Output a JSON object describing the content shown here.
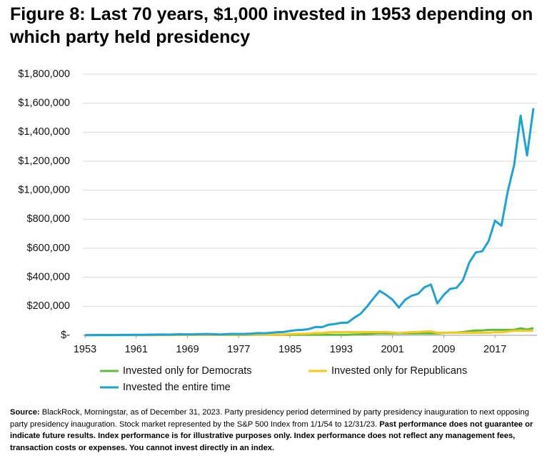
{
  "chart_data": {
    "type": "line",
    "title": "Figure 8: Last 70 years, $1,000 invested in 1953 depending on which party held presidency",
    "x": [
      1953,
      1954,
      1955,
      1956,
      1957,
      1958,
      1959,
      1960,
      1961,
      1962,
      1963,
      1964,
      1965,
      1966,
      1967,
      1968,
      1969,
      1970,
      1971,
      1972,
      1973,
      1974,
      1975,
      1976,
      1977,
      1978,
      1979,
      1980,
      1981,
      1982,
      1983,
      1984,
      1985,
      1986,
      1987,
      1988,
      1989,
      1990,
      1991,
      1992,
      1993,
      1994,
      1995,
      1996,
      1997,
      1998,
      1999,
      2000,
      2001,
      2002,
      2003,
      2004,
      2005,
      2006,
      2007,
      2008,
      2009,
      2010,
      2011,
      2012,
      2013,
      2014,
      2015,
      2016,
      2017,
      2018,
      2019,
      2020,
      2021,
      2022,
      2023
    ],
    "series": [
      {
        "name": "Invested only for Democrats",
        "color": "#5dbb3f",
        "values": [
          1000,
          1000,
          1000,
          1000,
          1000,
          1000,
          1000,
          1000,
          1270,
          1160,
          1420,
          1660,
          1860,
          1680,
          2080,
          2310,
          2310,
          2310,
          2310,
          2310,
          2310,
          2310,
          2310,
          2310,
          2140,
          2280,
          2700,
          3580,
          3580,
          3580,
          3580,
          3580,
          3580,
          3580,
          3580,
          3580,
          3580,
          3580,
          3580,
          3580,
          3940,
          3990,
          5490,
          6750,
          9010,
          11580,
          14020,
          12740,
          12740,
          12740,
          12740,
          12740,
          12740,
          12740,
          12740,
          12740,
          16110,
          18540,
          18930,
          21960,
          29070,
          33050,
          33510,
          37510,
          37510,
          37510,
          37510,
          37510,
          48280,
          39540,
          49930
        ]
      },
      {
        "name": "Invested only for Republicans",
        "color": "#f7c81e",
        "values": [
          1000,
          1530,
          2010,
          2140,
          1910,
          2730,
          3060,
          3070,
          3070,
          3070,
          3070,
          3070,
          3070,
          3070,
          3070,
          3070,
          2810,
          2920,
          3340,
          3970,
          3390,
          2490,
          3420,
          4240,
          4240,
          4240,
          4240,
          4240,
          4030,
          4900,
          6000,
          6380,
          8400,
          9970,
          10490,
          12230,
          16110,
          15600,
          20360,
          21910,
          21910,
          21910,
          21910,
          21910,
          21910,
          21910,
          21910,
          21910,
          19310,
          15040,
          19350,
          21460,
          22510,
          26070,
          27500,
          17330,
          17330,
          17330,
          17330,
          17330,
          17330,
          17330,
          17330,
          17330,
          21110,
          20190,
          26540,
          31430,
          31430,
          31430,
          31430
        ]
      },
      {
        "name": "Invested the entire time",
        "color": "#1ba2d9",
        "values": [
          1000,
          1530,
          2010,
          2140,
          1910,
          2730,
          3060,
          3070,
          3900,
          3560,
          4370,
          5090,
          5720,
          5150,
          6380,
          7080,
          6480,
          6740,
          7700,
          9160,
          7820,
          5750,
          7890,
          9770,
          9070,
          9660,
          11440,
          15150,
          14410,
          17510,
          21450,
          22790,
          30020,
          35620,
          37490,
          43710,
          57550,
          55750,
          72730,
          78270,
          86150,
          87290,
          120090,
          147660,
          196910,
          253190,
          306460,
          278560,
          245450,
          191210,
          246050,
          272830,
          286230,
          331430,
          349650,
          220280,
          278570,
          320530,
          327300,
          379690,
          502660,
          571450,
          579350,
          648650,
          790240,
          755600,
          993530,
          1176340,
          1514050,
          1239850,
          1565810
        ]
      }
    ],
    "xlim": [
      1953,
      2023
    ],
    "xticks": [
      1953,
      1961,
      1969,
      1977,
      1985,
      1993,
      2001,
      2009,
      2017
    ],
    "ylim": [
      0,
      1800000
    ],
    "yticks": [
      {
        "value": 0,
        "label": "$-"
      },
      {
        "value": 200000,
        "label": "$200,000"
      },
      {
        "value": 400000,
        "label": "$400,000"
      },
      {
        "value": 600000,
        "label": "$600,000"
      },
      {
        "value": 800000,
        "label": "$800,000"
      },
      {
        "value": 1000000,
        "label": "$1,000,000"
      },
      {
        "value": 1200000,
        "label": "$1,200,000"
      },
      {
        "value": 1400000,
        "label": "$1,400,000"
      },
      {
        "value": 1600000,
        "label": "$1,600,000"
      },
      {
        "value": 1800000,
        "label": "$1,800,000"
      }
    ],
    "grid": true,
    "source_label": "Source:",
    "source_text": "BlackRock, Morningstar, as of December 31, 2023. Party presidency period determined by party presidency inauguration to next opposing party presidency inauguration. Stock market represented by the S&P 500 Index from 1/1/54 to 12/31/23.",
    "disclaimer": "Past performance does not guarantee or indicate future results. Index performance is for illustrative purposes only. Index performance does not reflect any management fees, transaction costs or expenses. You cannot invest directly in an index."
  }
}
